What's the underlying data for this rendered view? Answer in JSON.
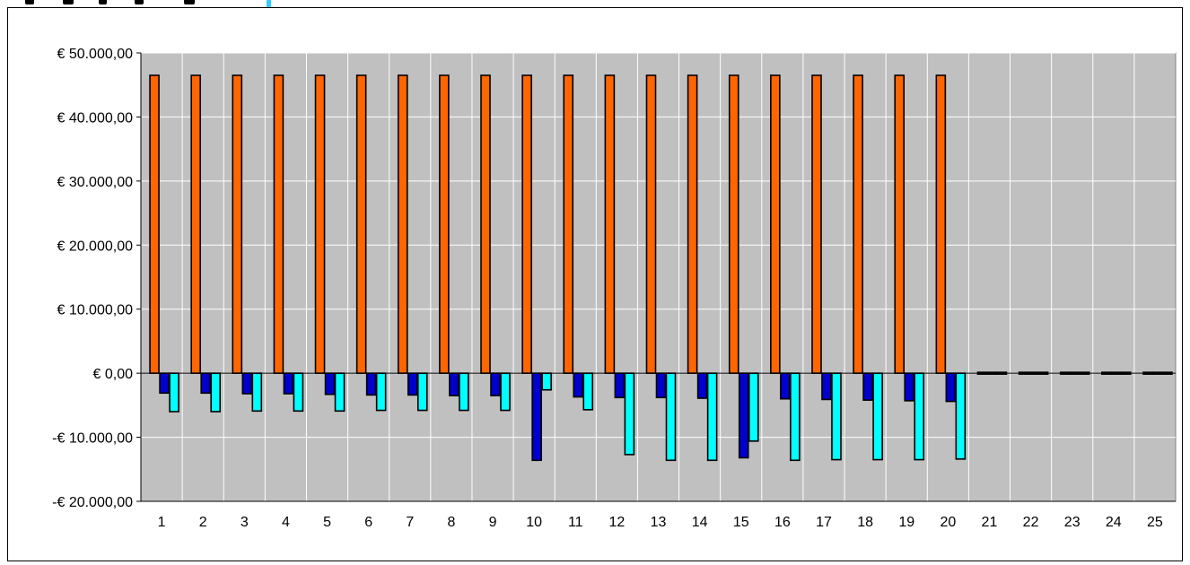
{
  "chart_data": {
    "type": "bar",
    "title": "",
    "xlabel": "",
    "ylabel": "",
    "categories": [
      "1",
      "2",
      "3",
      "4",
      "5",
      "6",
      "7",
      "8",
      "9",
      "10",
      "11",
      "12",
      "13",
      "14",
      "15",
      "16",
      "17",
      "18",
      "19",
      "20",
      "21",
      "22",
      "23",
      "24",
      "25"
    ],
    "ylim": [
      -20000,
      50000
    ],
    "ytick_values": [
      50000,
      40000,
      30000,
      20000,
      10000,
      0,
      -10000,
      -20000
    ],
    "ytick_labels": [
      "€ 50.000,00",
      "€ 40.000,00",
      "€ 30.000,00",
      "€ 20.000,00",
      "€ 10.000,00",
      "€ 0,00",
      "-€ 10.000,00",
      "-€ 20.000,00"
    ],
    "grid": true,
    "legend": "none",
    "plot_background": "#c0c0c0",
    "series": [
      {
        "color": "#ff6600",
        "values": [
          46500,
          46500,
          46500,
          46500,
          46500,
          46500,
          46500,
          46500,
          46500,
          46500,
          46500,
          46500,
          46500,
          46500,
          46500,
          46500,
          46500,
          46500,
          46500,
          46500,
          0,
          0,
          0,
          0,
          0
        ]
      },
      {
        "color": "#0000cc",
        "values": [
          -3100,
          -3100,
          -3200,
          -3200,
          -3300,
          -3400,
          -3400,
          -3500,
          -3500,
          -13600,
          -3700,
          -3800,
          -3800,
          -3900,
          -13200,
          -4000,
          -4100,
          -4200,
          -4300,
          -4400,
          0,
          0,
          0,
          0,
          0
        ]
      },
      {
        "color": "#00ffff",
        "values": [
          -6000,
          -6000,
          -5900,
          -5900,
          -5900,
          -5800,
          -5800,
          -5800,
          -5800,
          -2600,
          -5700,
          -12700,
          -13600,
          -13600,
          -10600,
          -13600,
          -13500,
          -13500,
          -13500,
          -13400,
          0,
          0,
          0,
          0,
          0
        ]
      }
    ]
  }
}
